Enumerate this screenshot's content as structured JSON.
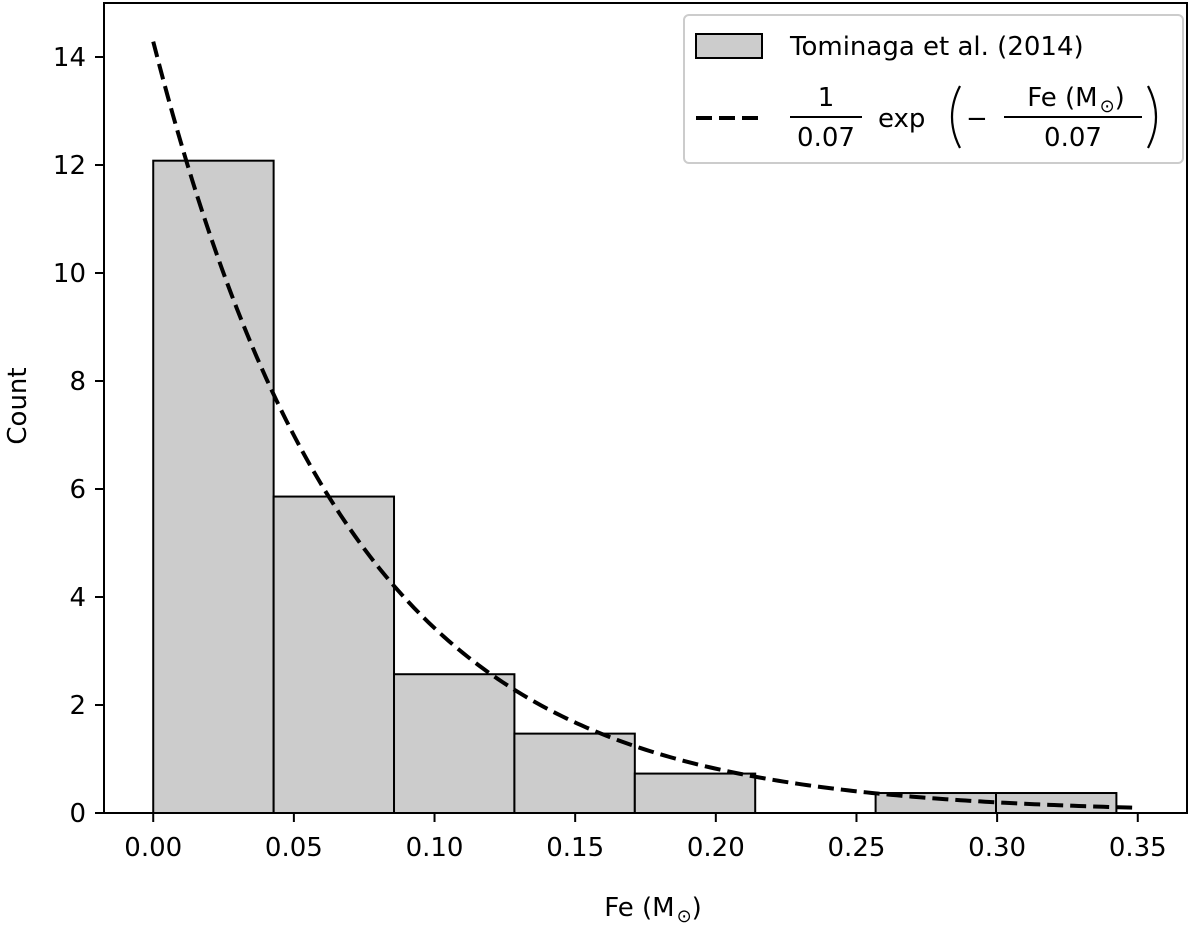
{
  "chart_data": {
    "type": "bar",
    "xlabel": "Fe (M",
    "xlabel_sub": "⊙",
    "xlabel_close": ")",
    "ylabel": "Count",
    "xlim": [
      -0.0175,
      0.3675
    ],
    "ylim": [
      0,
      15.0
    ],
    "x_ticks": [
      0.0,
      0.05,
      0.1,
      0.15,
      0.2,
      0.25,
      0.3,
      0.35
    ],
    "x_tick_labels": [
      "0.00",
      "0.05",
      "0.10",
      "0.15",
      "0.20",
      "0.25",
      "0.30",
      "0.35"
    ],
    "y_ticks": [
      0,
      2,
      4,
      6,
      8,
      10,
      12,
      14
    ],
    "y_tick_labels": [
      "0",
      "2",
      "4",
      "6",
      "8",
      "10",
      "12",
      "14"
    ],
    "grid": false,
    "histogram": {
      "name": "Tominaga et al. (2014)",
      "fill": "#cccccc",
      "edge": "#000000",
      "bin_edges": [
        0.0,
        0.0428,
        0.0856,
        0.1284,
        0.1712,
        0.214,
        0.2568,
        0.2996,
        0.3424
      ],
      "counts": [
        12.08,
        5.86,
        2.57,
        1.47,
        0.73,
        0.0,
        0.37,
        0.37
      ]
    },
    "curve": {
      "style": "dashed",
      "color": "#000000",
      "scale": 0.07,
      "x_range": [
        0.0,
        0.35
      ],
      "legend": {
        "coef_num": "1",
        "coef_den": "0.07",
        "func": "exp",
        "minus": "−",
        "frac_num": "Fe (M",
        "frac_num_sub": "⊙",
        "frac_num_close": ")",
        "frac_den": "0.07"
      }
    },
    "legend_position": "top-right"
  }
}
